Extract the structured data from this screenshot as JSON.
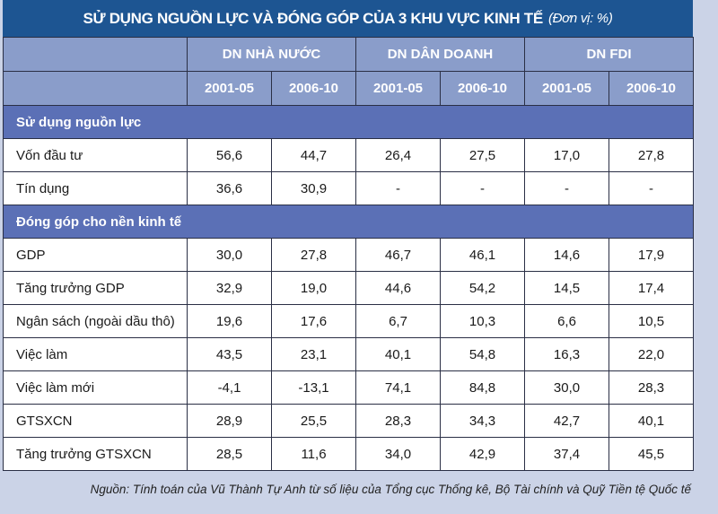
{
  "title": "SỬ DỤNG NGUỒN LỰC VÀ ĐÓNG GÓP CỦA 3 KHU VỰC KINH TẾ",
  "unit": "(Đơn vị: %)",
  "chart_data": {
    "type": "table",
    "groups": [
      "DN NHÀ NƯỚC",
      "DN DÂN DOANH",
      "DN FDI"
    ],
    "periods": [
      "2001-05",
      "2006-10",
      "2001-05",
      "2006-10",
      "2001-05",
      "2006-10"
    ],
    "sections": [
      {
        "title": "Sử dụng nguồn lực",
        "rows": [
          {
            "label": "Vốn đầu tư",
            "values": [
              "56,6",
              "44,7",
              "26,4",
              "27,5",
              "17,0",
              "27,8"
            ]
          },
          {
            "label": "Tín dụng",
            "values": [
              "36,6",
              "30,9",
              "-",
              "-",
              "-",
              "-"
            ]
          }
        ]
      },
      {
        "title": "Đóng góp cho nền kinh tế",
        "rows": [
          {
            "label": "GDP",
            "values": [
              "30,0",
              "27,8",
              "46,7",
              "46,1",
              "14,6",
              "17,9"
            ]
          },
          {
            "label": "Tăng trưởng GDP",
            "values": [
              "32,9",
              "19,0",
              "44,6",
              "54,2",
              "14,5",
              "17,4"
            ]
          },
          {
            "label": "Ngân sách (ngoài dầu thô)",
            "values": [
              "19,6",
              "17,6",
              "6,7",
              "10,3",
              "6,6",
              "10,5"
            ]
          },
          {
            "label": "Việc làm",
            "values": [
              "43,5",
              "23,1",
              "40,1",
              "54,8",
              "16,3",
              "22,0"
            ]
          },
          {
            "label": "Việc làm mới",
            "values": [
              "-4,1",
              "-13,1",
              "74,1",
              "84,8",
              "30,0",
              "28,3"
            ]
          },
          {
            "label": "GTSXCN",
            "values": [
              "28,9",
              "25,5",
              "28,3",
              "34,3",
              "42,7",
              "40,1"
            ]
          },
          {
            "label": "Tăng trưởng GTSXCN",
            "values": [
              "28,5",
              "11,6",
              "34,0",
              "42,9",
              "37,4",
              "45,5"
            ]
          }
        ]
      }
    ]
  },
  "source": "Nguồn: Tính toán của Vũ Thành Tự Anh từ số liệu của Tổng cục Thống kê, Bộ Tài chính và Quỹ Tiền tệ Quốc tế",
  "colors": {
    "title_bg": "#1d5592",
    "header_bg": "#8a9dca",
    "section_bg": "#5b70b6",
    "page_bg": "#cbd3e7"
  }
}
